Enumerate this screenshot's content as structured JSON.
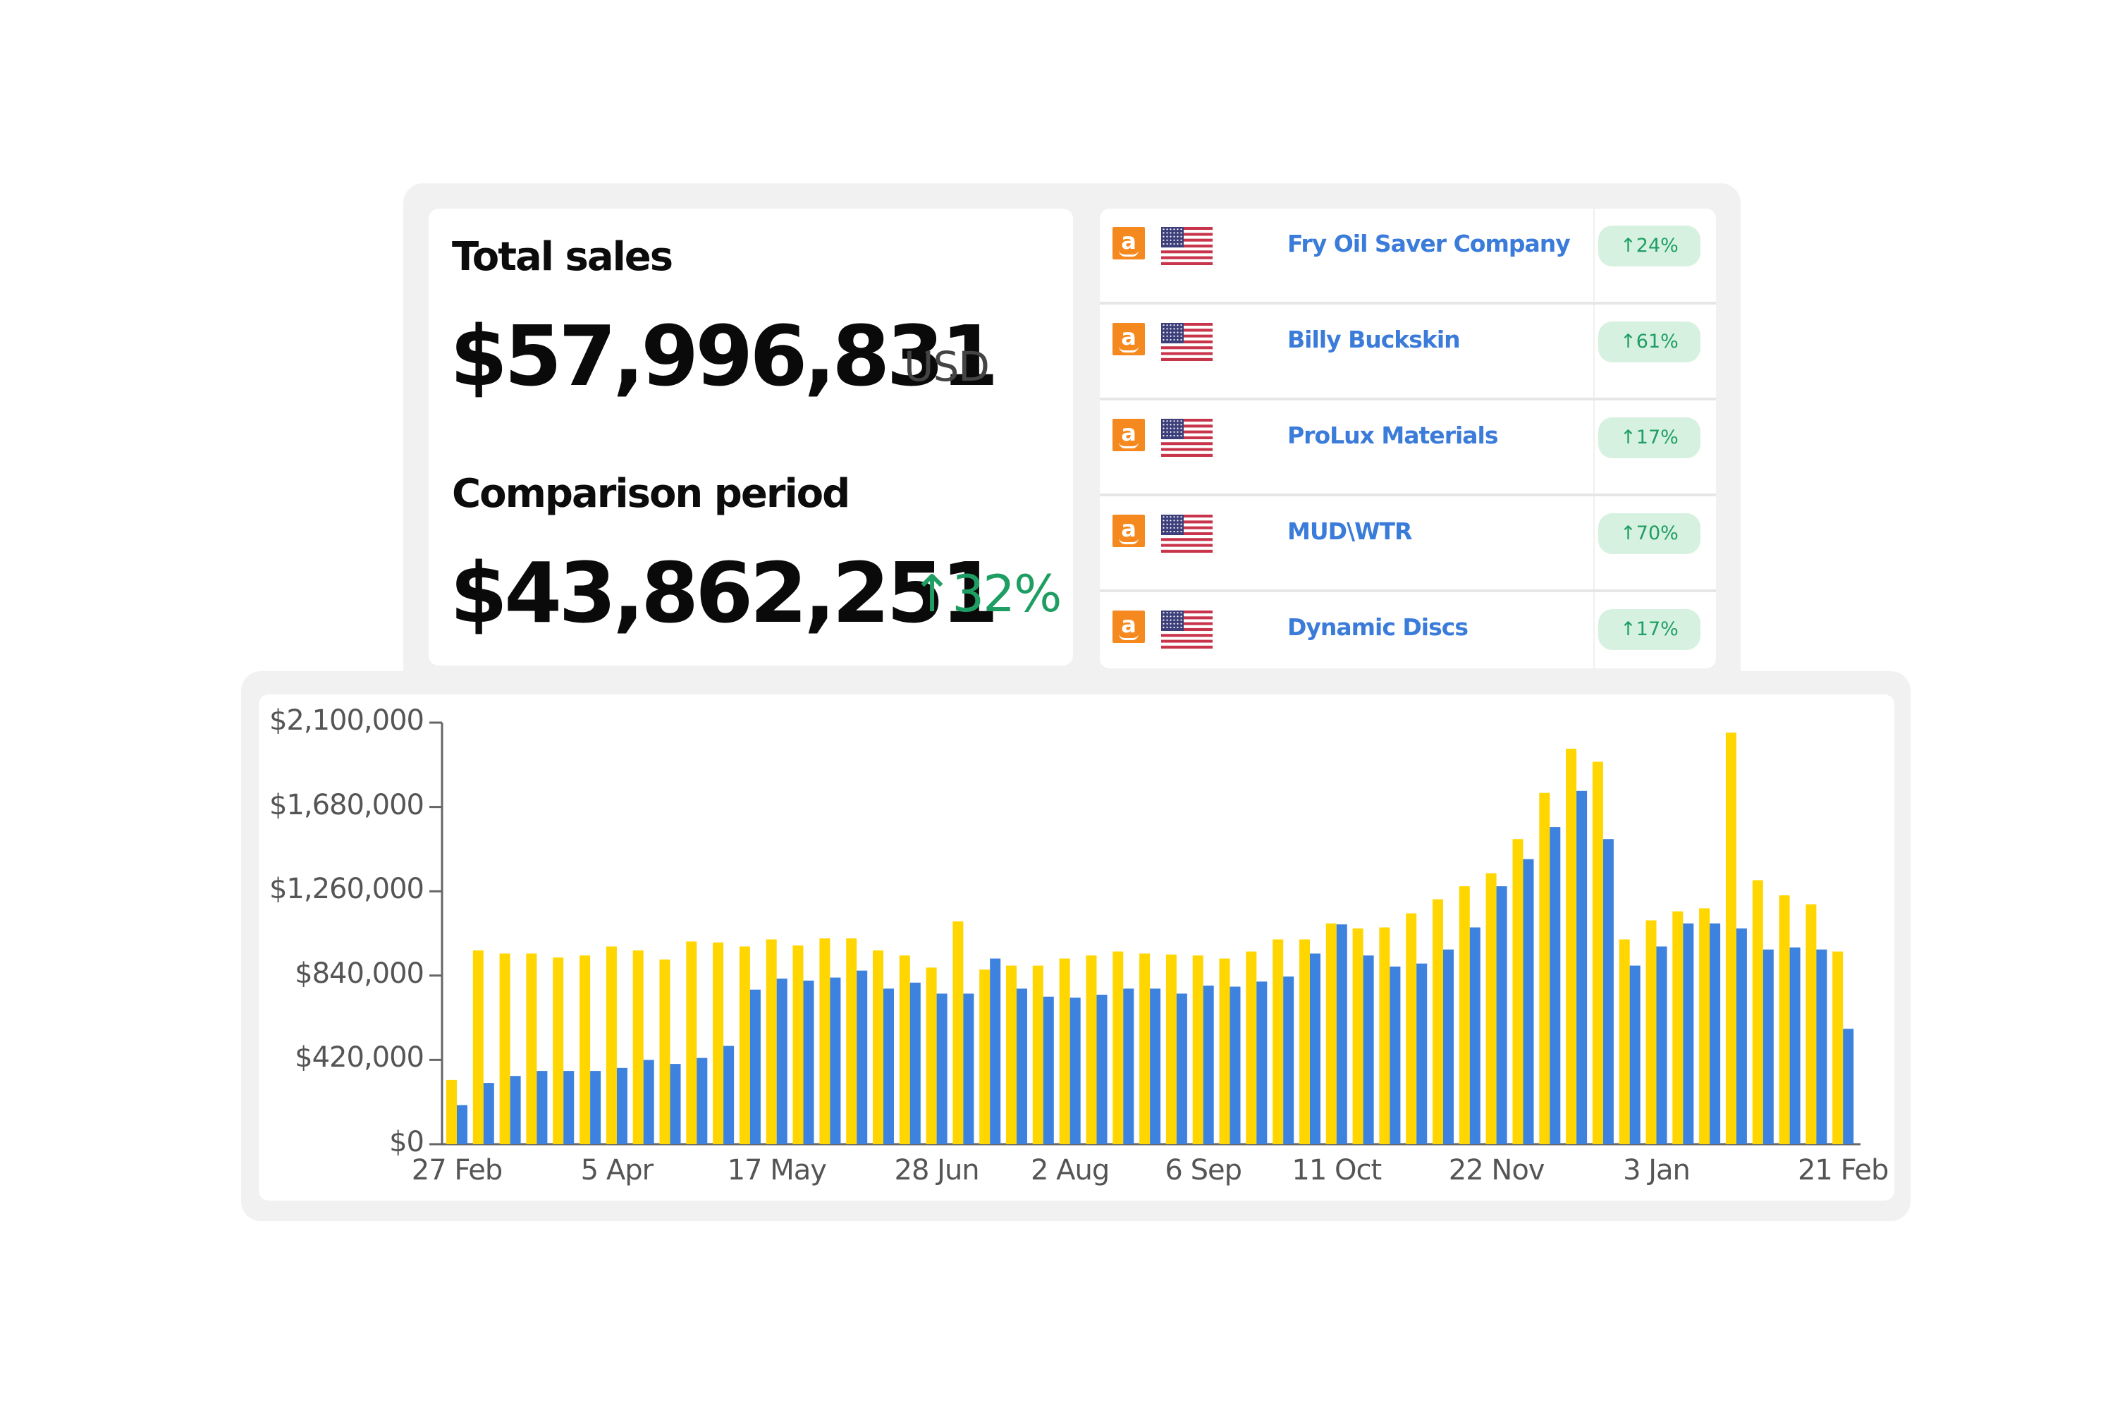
{
  "summary": {
    "total_label": "Total sales",
    "total_value": "$57,996,831",
    "total_currency": "USD",
    "comparison_label": "Comparison period",
    "comparison_value": "$43,862,251",
    "comparison_delta_arrow": "↑",
    "comparison_delta": "32%",
    "delta_color": "#1f9e63"
  },
  "top_sellers": [
    {
      "marketplace_icon": "amazon-icon",
      "country_icon": "us-flag-icon",
      "name": "Fry Oil Saver Company",
      "change": "↑24%"
    },
    {
      "marketplace_icon": "amazon-icon",
      "country_icon": "us-flag-icon",
      "name": "Billy Buckskin",
      "change": "↑61%"
    },
    {
      "marketplace_icon": "amazon-icon",
      "country_icon": "us-flag-icon",
      "name": "ProLux Materials",
      "change": "↑17%"
    },
    {
      "marketplace_icon": "amazon-icon",
      "country_icon": "us-flag-icon",
      "name": "MUD\\WTR",
      "change": "↑70%"
    },
    {
      "marketplace_icon": "amazon-icon",
      "country_icon": "us-flag-icon",
      "name": "Dynamic Discs",
      "change": "↑17%"
    }
  ],
  "colors": {
    "current_period": "#ffd600",
    "comparison_period": "#3d82de",
    "link": "#3b7bd9",
    "badge_bg": "#d7f1e0",
    "badge_text": "#1f9e63",
    "frame_bg": "#f1f1f1"
  },
  "chart_data": {
    "type": "bar",
    "title": "",
    "xlabel": "",
    "ylabel": "",
    "ylim": [
      0,
      2100000
    ],
    "yticks": [
      0,
      420000,
      840000,
      1260000,
      1680000,
      2100000
    ],
    "ytick_labels": [
      "$0",
      "$420,000",
      "$840,000",
      "$1,260,000",
      "$1,680,000",
      "$2,100,000"
    ],
    "xtick_labels": [
      {
        "label": "27 Feb",
        "index": 0
      },
      {
        "label": "5 Apr",
        "index": 6
      },
      {
        "label": "17 May",
        "index": 12
      },
      {
        "label": "28 Jun",
        "index": 18
      },
      {
        "label": "2 Aug",
        "index": 23
      },
      {
        "label": "6 Sep",
        "index": 28
      },
      {
        "label": "11 Oct",
        "index": 33
      },
      {
        "label": "22 Nov",
        "index": 39
      },
      {
        "label": "3 Jan",
        "index": 45
      },
      {
        "label": "21 Feb",
        "index": 52
      }
    ],
    "grid": false,
    "legend": null,
    "series": [
      {
        "name": "Current period",
        "color": "#ffd600",
        "values": [
          320000,
          965000,
          950000,
          950000,
          930000,
          940000,
          985000,
          965000,
          920000,
          1010000,
          1005000,
          985000,
          1020000,
          990000,
          1025000,
          1025000,
          965000,
          940000,
          880000,
          1110000,
          870000,
          890000,
          890000,
          925000,
          940000,
          960000,
          950000,
          945000,
          940000,
          925000,
          960000,
          1020000,
          1020000,
          1100000,
          1075000,
          1080000,
          1150000,
          1220000,
          1285000,
          1350000,
          1520000,
          1750000,
          1970000,
          1905000,
          1020000,
          1115000,
          1160000,
          1175000,
          2050000,
          1315000,
          1240000,
          1195000,
          960000
        ]
      },
      {
        "name": "Comparison period",
        "color": "#3d82de",
        "values": [
          195000,
          305000,
          340000,
          365000,
          365000,
          365000,
          380000,
          420000,
          400000,
          430000,
          490000,
          770000,
          825000,
          815000,
          830000,
          865000,
          775000,
          805000,
          750000,
          750000,
          925000,
          775000,
          735000,
          730000,
          745000,
          775000,
          775000,
          750000,
          790000,
          785000,
          810000,
          835000,
          950000,
          1095000,
          940000,
          885000,
          900000,
          970000,
          1080000,
          1285000,
          1420000,
          1580000,
          1760000,
          1520000,
          890000,
          985000,
          1100000,
          1100000,
          1075000,
          970000,
          980000,
          970000,
          575000
        ]
      }
    ]
  }
}
